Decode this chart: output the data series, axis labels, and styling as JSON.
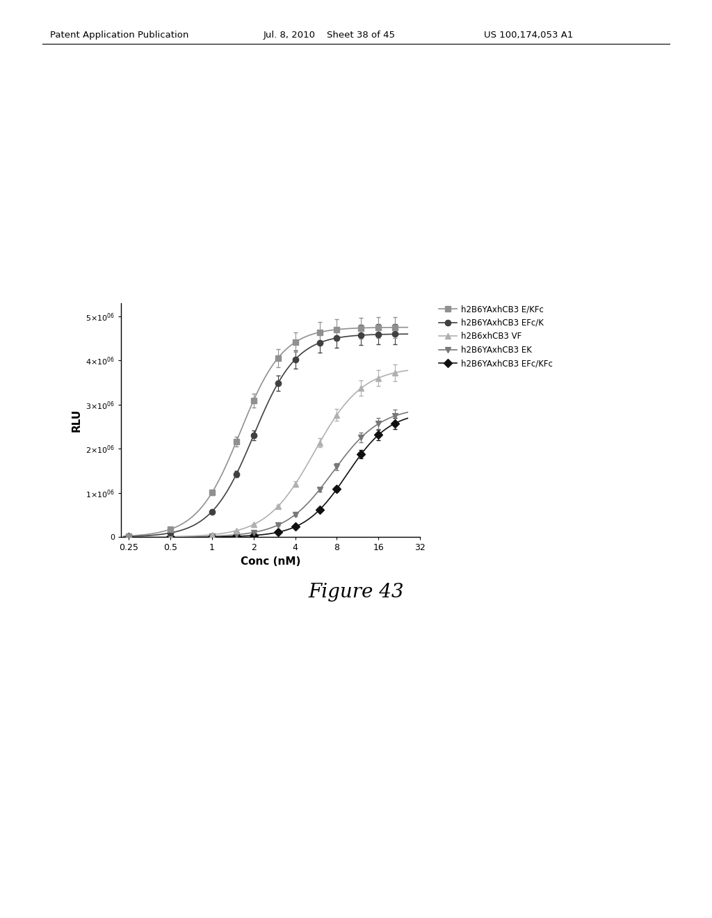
{
  "title": "Figure 43",
  "header_left": "Patent Application Publication",
  "header_mid": "Jul. 8, 2010    Sheet 38 of 45",
  "header_right": "US 100,174,053 A1",
  "xlabel": "Conc (nM)",
  "ylabel": "RLU",
  "ylim": [
    0,
    5300000.0
  ],
  "ytick_vals": [
    0,
    1000000.0,
    2000000.0,
    3000000.0,
    4000000.0,
    5000000.0
  ],
  "x_ticks": [
    0.25,
    0.5,
    1,
    2,
    4,
    8,
    16,
    32
  ],
  "x_tick_labels": [
    "0.25",
    "0.5",
    "1",
    "2",
    "4",
    "8",
    "16",
    "32"
  ],
  "series": [
    {
      "label": "h2B6YAxhCB3 E/KFc",
      "color": "#909090",
      "linecolor": "#909090",
      "marker": "s",
      "markersize": 6,
      "ec50": 1.6,
      "bottom": 0,
      "top": 4750000.0,
      "hillslope": 2.8,
      "zorder": 5
    },
    {
      "label": "h2B6YAxhCB3 EFc/K",
      "color": "#404040",
      "linecolor": "#404040",
      "marker": "o",
      "markersize": 6,
      "ec50": 2.0,
      "bottom": 0,
      "top": 4600000.0,
      "hillslope": 2.8,
      "zorder": 4
    },
    {
      "label": "h2B6xhCB3 VF",
      "color": "#b0b0b0",
      "linecolor": "#b0b0b0",
      "marker": "^",
      "markersize": 6,
      "ec50": 5.5,
      "bottom": 0,
      "top": 3850000.0,
      "hillslope": 2.5,
      "zorder": 3
    },
    {
      "label": "h2B6YAxhCB3 EK",
      "color": "#787878",
      "linecolor": "#787878",
      "marker": "v",
      "markersize": 6,
      "ec50": 7.5,
      "bottom": 0,
      "top": 2950000.0,
      "hillslope": 2.5,
      "zorder": 2
    },
    {
      "label": "h2B6YAxhCB3 EFc/KFc",
      "color": "#101010",
      "linecolor": "#101010",
      "marker": "D",
      "markersize": 6,
      "ec50": 9.5,
      "bottom": 0,
      "top": 2850000.0,
      "hillslope": 2.8,
      "zorder": 1
    }
  ],
  "data_x": [
    0.25,
    0.5,
    1.0,
    1.5,
    2.0,
    3.0,
    4.0,
    6.0,
    8.0,
    12.0,
    16.0,
    21.0
  ],
  "background_color": "#ffffff",
  "fig_width": 10.24,
  "fig_height": 13.2,
  "dpi": 100
}
